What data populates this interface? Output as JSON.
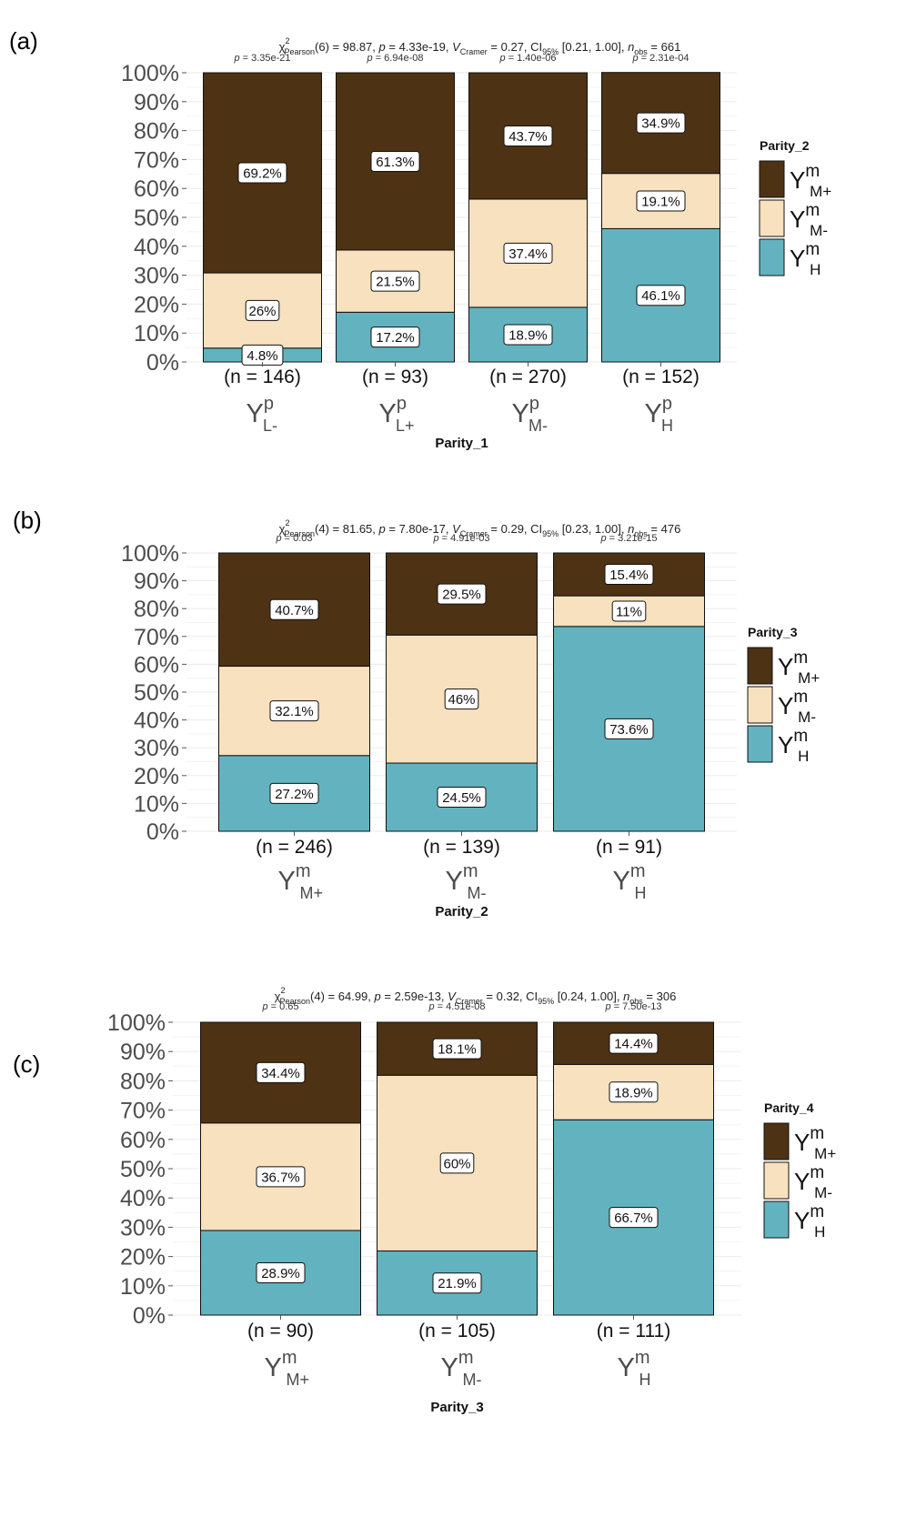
{
  "colors": {
    "Y_M_plus": "#4D3214",
    "Y_M_minus": "#F8E1BE",
    "Y_H": "#62B3BF"
  },
  "chart_data": [
    {
      "panel": "(a)",
      "type": "bar",
      "stacked": true,
      "percent": true,
      "title": {
        "chi_sub": "Pearson",
        "df": "6",
        "chi_value": "98.87",
        "p": "4.33e-19",
        "v_sub": "Cramer",
        "v_value": "0.27",
        "ci_sub": "95%",
        "ci": "[0.21, 1.00]",
        "n_sub": "obs",
        "n_obs": "661"
      },
      "xlabel": "Parity_1",
      "legend_title": "Parity_2",
      "legend_position": "right",
      "yticks": [
        "0%",
        "10%",
        "20%",
        "30%",
        "40%",
        "50%",
        "60%",
        "70%",
        "80%",
        "90%",
        "100%"
      ],
      "ylim": [
        0,
        100
      ],
      "categories": [
        {
          "base": "Y",
          "sup": "p",
          "sub": "L-"
        },
        {
          "base": "Y",
          "sup": "p",
          "sub": "L+"
        },
        {
          "base": "Y",
          "sup": "p",
          "sub": "M-"
        },
        {
          "base": "Y",
          "sup": "p",
          "sub": "H"
        }
      ],
      "counts": [
        "(n = 146)",
        "(n = 93)",
        "(n = 270)",
        "(n = 152)"
      ],
      "pvalues": [
        "3.35e-21",
        "6.94e-08",
        "1.40e-06",
        "2.31e-04"
      ],
      "series": [
        {
          "key": "Y_H",
          "legend": {
            "base": "Y",
            "sup": "m",
            "sub": "H"
          },
          "values": [
            4.8,
            17.2,
            18.9,
            46.1
          ],
          "labels": [
            "4.8%",
            "17.2%",
            "18.9%",
            "46.1%"
          ]
        },
        {
          "key": "Y_M_minus",
          "legend": {
            "base": "Y",
            "sup": "m",
            "sub": "M-"
          },
          "values": [
            26,
            21.5,
            37.4,
            19.1
          ],
          "labels": [
            "26%",
            "21.5%",
            "37.4%",
            "19.1%"
          ]
        },
        {
          "key": "Y_M_plus",
          "legend": {
            "base": "Y",
            "sup": "m",
            "sub": "M+"
          },
          "values": [
            69.2,
            61.3,
            43.7,
            34.9
          ],
          "labels": [
            "69.2%",
            "61.3%",
            "43.7%",
            "34.9%"
          ]
        }
      ]
    },
    {
      "panel": "(b)",
      "type": "bar",
      "stacked": true,
      "percent": true,
      "title": {
        "chi_sub": "Pearson",
        "df": "4",
        "chi_value": "81.65",
        "p": "7.80e-17",
        "v_sub": "Cramer",
        "v_value": "0.29",
        "ci_sub": "95%",
        "ci": "[0.23, 1.00]",
        "n_sub": "obs",
        "n_obs": "476"
      },
      "xlabel": "Parity_2",
      "legend_title": "Parity_3",
      "legend_position": "right",
      "yticks": [
        "0%",
        "10%",
        "20%",
        "30%",
        "40%",
        "50%",
        "60%",
        "70%",
        "80%",
        "90%",
        "100%"
      ],
      "ylim": [
        0,
        100
      ],
      "categories": [
        {
          "base": "Y",
          "sup": "m",
          "sub": "M+"
        },
        {
          "base": "Y",
          "sup": "m",
          "sub": "M-"
        },
        {
          "base": "Y",
          "sup": "m",
          "sub": "H"
        }
      ],
      "counts": [
        "(n = 246)",
        "(n = 139)",
        "(n = 91)"
      ],
      "pvalues": [
        "0.03",
        "4.91e-03",
        "3.21e-15"
      ],
      "series": [
        {
          "key": "Y_H",
          "legend": {
            "base": "Y",
            "sup": "m",
            "sub": "H"
          },
          "values": [
            27.2,
            24.5,
            73.6
          ],
          "labels": [
            "27.2%",
            "24.5%",
            "73.6%"
          ]
        },
        {
          "key": "Y_M_minus",
          "legend": {
            "base": "Y",
            "sup": "m",
            "sub": "M-"
          },
          "values": [
            32.1,
            46,
            11
          ],
          "labels": [
            "32.1%",
            "46%",
            "11%"
          ]
        },
        {
          "key": "Y_M_plus",
          "legend": {
            "base": "Y",
            "sup": "m",
            "sub": "M+"
          },
          "values": [
            40.7,
            29.5,
            15.4
          ],
          "labels": [
            "40.7%",
            "29.5%",
            "15.4%"
          ]
        }
      ]
    },
    {
      "panel": "(c)",
      "type": "bar",
      "stacked": true,
      "percent": true,
      "title": {
        "chi_sub": "Pearson",
        "df": "4",
        "chi_value": "64.99",
        "p": "2.59e-13",
        "v_sub": "Cramer",
        "v_value": "0.32",
        "ci_sub": "95%",
        "ci": "[0.24, 1.00]",
        "n_sub": "obs",
        "n_obs": "306"
      },
      "xlabel": "Parity_3",
      "legend_title": "Parity_4",
      "legend_position": "right",
      "yticks": [
        "0%",
        "10%",
        "20%",
        "30%",
        "40%",
        "50%",
        "60%",
        "70%",
        "80%",
        "90%",
        "100%"
      ],
      "ylim": [
        0,
        100
      ],
      "categories": [
        {
          "base": "Y",
          "sup": "m",
          "sub": "M+"
        },
        {
          "base": "Y",
          "sup": "m",
          "sub": "M-"
        },
        {
          "base": "Y",
          "sup": "m",
          "sub": "H"
        }
      ],
      "counts": [
        "(n = 90)",
        "(n = 105)",
        "(n = 111)"
      ],
      "pvalues": [
        "0.65",
        "4.51e-08",
        "7.50e-13"
      ],
      "series": [
        {
          "key": "Y_H",
          "legend": {
            "base": "Y",
            "sup": "m",
            "sub": "H"
          },
          "values": [
            28.9,
            21.9,
            66.7
          ],
          "labels": [
            "28.9%",
            "21.9%",
            "66.7%"
          ]
        },
        {
          "key": "Y_M_minus",
          "legend": {
            "base": "Y",
            "sup": "m",
            "sub": "M-"
          },
          "values": [
            36.7,
            60,
            18.9
          ],
          "labels": [
            "36.7%",
            "60%",
            "18.9%"
          ]
        },
        {
          "key": "Y_M_plus",
          "legend": {
            "base": "Y",
            "sup": "m",
            "sub": "M+"
          },
          "values": [
            34.4,
            18.1,
            14.4
          ],
          "labels": [
            "34.4%",
            "18.1%",
            "14.4%"
          ]
        }
      ]
    }
  ]
}
